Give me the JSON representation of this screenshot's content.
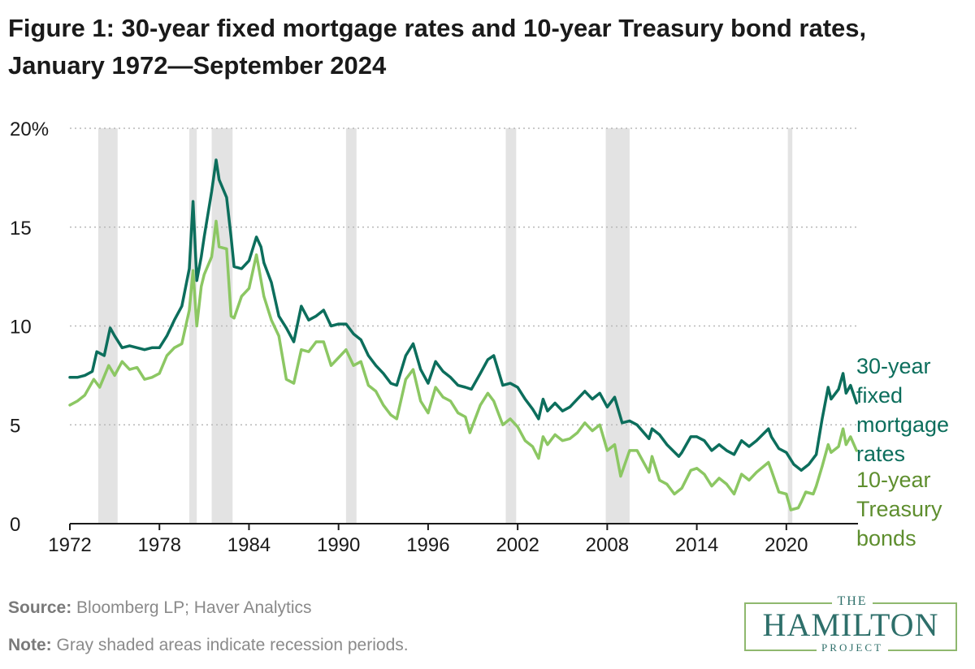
{
  "title": "Figure 1: 30-year fixed mortgage rates and 10-year Treasury bond rates, January 1972—September 2024",
  "source_label": "Source:",
  "source_text": " Bloomberg LP; Haver Analytics",
  "note_label": "Note:",
  "note_text": " Gray shaded areas indicate recession periods.",
  "logo": {
    "top": "THE",
    "main": "HAMILTON",
    "bottom": "PROJECT"
  },
  "chart_data": {
    "type": "line",
    "ylim": [
      0,
      20
    ],
    "xlim": [
      1972,
      2025
    ],
    "y_ticks": [
      0,
      5,
      10,
      15,
      20
    ],
    "y_tick_labels": [
      "0",
      "5",
      "10",
      "15",
      "20%"
    ],
    "x_ticks": [
      1972,
      1978,
      1984,
      1990,
      1996,
      2002,
      2008,
      2014,
      2020
    ],
    "x_tick_labels": [
      "1972",
      "1978",
      "1984",
      "1990",
      "1996",
      "2002",
      "2008",
      "2014",
      "2020"
    ],
    "grid": "horizontal dotted",
    "recessions": [
      [
        1973.9,
        1975.2
      ],
      [
        1980.0,
        1980.5
      ],
      [
        1981.5,
        1982.9
      ],
      [
        1990.5,
        1991.2
      ],
      [
        2001.2,
        2001.9
      ],
      [
        2007.9,
        2009.5
      ],
      [
        2020.1,
        2020.4
      ]
    ],
    "series": [
      {
        "name": "30-year fixed mortgage rates",
        "label_lines": [
          "30-year",
          "fixed",
          "mortgage",
          "rates"
        ],
        "color": "#0c6e5c",
        "points": [
          [
            1972.0,
            7.4
          ],
          [
            1972.5,
            7.4
          ],
          [
            1973.0,
            7.5
          ],
          [
            1973.5,
            7.7
          ],
          [
            1973.8,
            8.7
          ],
          [
            1974.3,
            8.5
          ],
          [
            1974.7,
            9.9
          ],
          [
            1975.0,
            9.5
          ],
          [
            1975.5,
            8.9
          ],
          [
            1976.0,
            9.0
          ],
          [
            1976.5,
            8.9
          ],
          [
            1977.0,
            8.8
          ],
          [
            1977.5,
            8.9
          ],
          [
            1978.0,
            8.9
          ],
          [
            1978.5,
            9.5
          ],
          [
            1979.0,
            10.3
          ],
          [
            1979.5,
            11.0
          ],
          [
            1980.0,
            12.9
          ],
          [
            1980.25,
            16.3
          ],
          [
            1980.5,
            12.3
          ],
          [
            1980.8,
            13.5
          ],
          [
            1981.0,
            14.5
          ],
          [
            1981.5,
            16.8
          ],
          [
            1981.8,
            18.4
          ],
          [
            1982.0,
            17.4
          ],
          [
            1982.5,
            16.5
          ],
          [
            1982.8,
            14.5
          ],
          [
            1983.0,
            13.0
          ],
          [
            1983.5,
            12.9
          ],
          [
            1984.0,
            13.3
          ],
          [
            1984.5,
            14.5
          ],
          [
            1984.8,
            14.0
          ],
          [
            1985.0,
            13.2
          ],
          [
            1985.5,
            12.2
          ],
          [
            1986.0,
            10.5
          ],
          [
            1986.5,
            9.9
          ],
          [
            1987.0,
            9.2
          ],
          [
            1987.5,
            11.0
          ],
          [
            1988.0,
            10.3
          ],
          [
            1988.5,
            10.5
          ],
          [
            1989.0,
            10.8
          ],
          [
            1989.5,
            10.0
          ],
          [
            1990.0,
            10.1
          ],
          [
            1990.5,
            10.1
          ],
          [
            1991.0,
            9.6
          ],
          [
            1991.5,
            9.3
          ],
          [
            1992.0,
            8.5
          ],
          [
            1992.5,
            8.0
          ],
          [
            1993.0,
            7.6
          ],
          [
            1993.5,
            7.1
          ],
          [
            1993.9,
            7.0
          ],
          [
            1994.5,
            8.5
          ],
          [
            1995.0,
            9.1
          ],
          [
            1995.5,
            7.8
          ],
          [
            1996.0,
            7.1
          ],
          [
            1996.5,
            8.2
          ],
          [
            1997.0,
            7.7
          ],
          [
            1997.5,
            7.4
          ],
          [
            1998.0,
            7.0
          ],
          [
            1998.5,
            6.9
          ],
          [
            1998.9,
            6.8
          ],
          [
            1999.5,
            7.6
          ],
          [
            2000.0,
            8.3
          ],
          [
            2000.4,
            8.5
          ],
          [
            2001.0,
            7.0
          ],
          [
            2001.5,
            7.1
          ],
          [
            2002.0,
            6.9
          ],
          [
            2002.5,
            6.3
          ],
          [
            2003.0,
            5.8
          ],
          [
            2003.4,
            5.3
          ],
          [
            2003.7,
            6.3
          ],
          [
            2004.0,
            5.7
          ],
          [
            2004.5,
            6.1
          ],
          [
            2005.0,
            5.7
          ],
          [
            2005.5,
            5.9
          ],
          [
            2006.0,
            6.3
          ],
          [
            2006.5,
            6.7
          ],
          [
            2007.0,
            6.3
          ],
          [
            2007.5,
            6.6
          ],
          [
            2008.0,
            5.9
          ],
          [
            2008.5,
            6.4
          ],
          [
            2009.0,
            5.1
          ],
          [
            2009.5,
            5.2
          ],
          [
            2010.0,
            5.0
          ],
          [
            2010.8,
            4.3
          ],
          [
            2011.0,
            4.8
          ],
          [
            2011.5,
            4.5
          ],
          [
            2012.0,
            4.0
          ],
          [
            2012.8,
            3.4
          ],
          [
            2013.0,
            3.6
          ],
          [
            2013.6,
            4.4
          ],
          [
            2014.0,
            4.4
          ],
          [
            2014.5,
            4.2
          ],
          [
            2015.0,
            3.7
          ],
          [
            2015.5,
            4.0
          ],
          [
            2016.0,
            3.7
          ],
          [
            2016.5,
            3.5
          ],
          [
            2017.0,
            4.2
          ],
          [
            2017.5,
            3.9
          ],
          [
            2018.0,
            4.2
          ],
          [
            2018.8,
            4.8
          ],
          [
            2019.0,
            4.4
          ],
          [
            2019.5,
            3.8
          ],
          [
            2020.0,
            3.6
          ],
          [
            2020.5,
            3.0
          ],
          [
            2021.0,
            2.7
          ],
          [
            2021.5,
            3.0
          ],
          [
            2022.0,
            3.5
          ],
          [
            2022.4,
            5.3
          ],
          [
            2022.8,
            6.9
          ],
          [
            2023.0,
            6.3
          ],
          [
            2023.5,
            6.8
          ],
          [
            2023.8,
            7.6
          ],
          [
            2024.0,
            6.6
          ],
          [
            2024.3,
            7.0
          ],
          [
            2024.7,
            6.1
          ]
        ]
      },
      {
        "name": "10-year Treasury bonds",
        "label_lines": [
          "10-year",
          "Treasury",
          "bonds"
        ],
        "color": "#8cc763",
        "label_color": "#5e8e2e",
        "points": [
          [
            1972.0,
            6.0
          ],
          [
            1972.5,
            6.2
          ],
          [
            1973.0,
            6.5
          ],
          [
            1973.6,
            7.3
          ],
          [
            1974.0,
            6.9
          ],
          [
            1974.6,
            8.0
          ],
          [
            1975.0,
            7.5
          ],
          [
            1975.5,
            8.2
          ],
          [
            1976.0,
            7.8
          ],
          [
            1976.5,
            7.9
          ],
          [
            1977.0,
            7.3
          ],
          [
            1977.5,
            7.4
          ],
          [
            1978.0,
            7.6
          ],
          [
            1978.5,
            8.5
          ],
          [
            1979.0,
            8.9
          ],
          [
            1979.5,
            9.1
          ],
          [
            1980.0,
            10.8
          ],
          [
            1980.25,
            12.8
          ],
          [
            1980.5,
            10.0
          ],
          [
            1980.8,
            12.0
          ],
          [
            1981.0,
            12.6
          ],
          [
            1981.5,
            13.5
          ],
          [
            1981.8,
            15.3
          ],
          [
            1982.0,
            14.0
          ],
          [
            1982.5,
            13.9
          ],
          [
            1982.8,
            10.5
          ],
          [
            1983.0,
            10.4
          ],
          [
            1983.5,
            11.5
          ],
          [
            1984.0,
            11.9
          ],
          [
            1984.5,
            13.6
          ],
          [
            1985.0,
            11.5
          ],
          [
            1985.5,
            10.3
          ],
          [
            1986.0,
            9.5
          ],
          [
            1986.5,
            7.3
          ],
          [
            1987.0,
            7.1
          ],
          [
            1987.5,
            8.8
          ],
          [
            1988.0,
            8.7
          ],
          [
            1988.5,
            9.2
          ],
          [
            1989.0,
            9.2
          ],
          [
            1989.5,
            8.0
          ],
          [
            1990.0,
            8.4
          ],
          [
            1990.5,
            8.8
          ],
          [
            1991.0,
            8.0
          ],
          [
            1991.5,
            8.2
          ],
          [
            1992.0,
            7.0
          ],
          [
            1992.5,
            6.7
          ],
          [
            1993.0,
            6.0
          ],
          [
            1993.5,
            5.5
          ],
          [
            1993.9,
            5.3
          ],
          [
            1994.5,
            7.3
          ],
          [
            1995.0,
            7.8
          ],
          [
            1995.5,
            6.2
          ],
          [
            1996.0,
            5.6
          ],
          [
            1996.5,
            6.9
          ],
          [
            1997.0,
            6.4
          ],
          [
            1997.5,
            6.2
          ],
          [
            1998.0,
            5.6
          ],
          [
            1998.5,
            5.4
          ],
          [
            1998.8,
            4.6
          ],
          [
            1999.5,
            6.0
          ],
          [
            2000.0,
            6.6
          ],
          [
            2000.4,
            6.2
          ],
          [
            2001.0,
            5.0
          ],
          [
            2001.5,
            5.3
          ],
          [
            2002.0,
            4.9
          ],
          [
            2002.5,
            4.2
          ],
          [
            2003.0,
            3.9
          ],
          [
            2003.4,
            3.3
          ],
          [
            2003.7,
            4.4
          ],
          [
            2004.0,
            4.0
          ],
          [
            2004.5,
            4.5
          ],
          [
            2005.0,
            4.2
          ],
          [
            2005.5,
            4.3
          ],
          [
            2006.0,
            4.6
          ],
          [
            2006.5,
            5.1
          ],
          [
            2007.0,
            4.7
          ],
          [
            2007.5,
            5.0
          ],
          [
            2008.0,
            3.7
          ],
          [
            2008.5,
            4.0
          ],
          [
            2008.9,
            2.4
          ],
          [
            2009.5,
            3.7
          ],
          [
            2010.0,
            3.7
          ],
          [
            2010.8,
            2.6
          ],
          [
            2011.0,
            3.4
          ],
          [
            2011.5,
            2.2
          ],
          [
            2012.0,
            2.0
          ],
          [
            2012.5,
            1.5
          ],
          [
            2013.0,
            1.8
          ],
          [
            2013.6,
            2.7
          ],
          [
            2014.0,
            2.8
          ],
          [
            2014.5,
            2.5
          ],
          [
            2015.0,
            1.9
          ],
          [
            2015.5,
            2.3
          ],
          [
            2016.0,
            2.0
          ],
          [
            2016.5,
            1.5
          ],
          [
            2017.0,
            2.5
          ],
          [
            2017.5,
            2.2
          ],
          [
            2018.0,
            2.6
          ],
          [
            2018.8,
            3.1
          ],
          [
            2019.0,
            2.7
          ],
          [
            2019.5,
            1.6
          ],
          [
            2020.0,
            1.5
          ],
          [
            2020.3,
            0.7
          ],
          [
            2020.8,
            0.8
          ],
          [
            2021.0,
            1.1
          ],
          [
            2021.3,
            1.6
          ],
          [
            2021.8,
            1.5
          ],
          [
            2022.0,
            1.9
          ],
          [
            2022.4,
            2.9
          ],
          [
            2022.8,
            4.0
          ],
          [
            2023.0,
            3.6
          ],
          [
            2023.5,
            3.9
          ],
          [
            2023.8,
            4.8
          ],
          [
            2024.0,
            4.0
          ],
          [
            2024.3,
            4.4
          ],
          [
            2024.7,
            3.7
          ]
        ]
      }
    ]
  }
}
